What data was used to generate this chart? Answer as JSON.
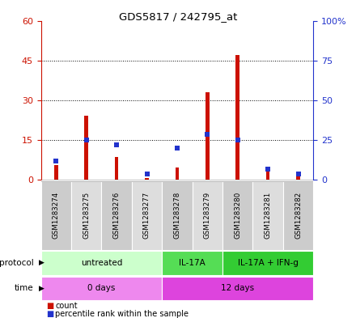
{
  "title": "GDS5817 / 242795_at",
  "samples": [
    "GSM1283274",
    "GSM1283275",
    "GSM1283276",
    "GSM1283277",
    "GSM1283278",
    "GSM1283279",
    "GSM1283280",
    "GSM1283281",
    "GSM1283282"
  ],
  "counts": [
    5.5,
    24,
    8.5,
    0.5,
    4.5,
    33,
    47,
    3,
    1.5
  ],
  "percentiles_left": [
    7,
    15,
    13,
    2,
    12,
    17,
    15,
    4,
    2
  ],
  "ylim_left": [
    0,
    60
  ],
  "ylim_right": [
    0,
    100
  ],
  "yticks_left": [
    0,
    15,
    30,
    45,
    60
  ],
  "ytick_labels_left": [
    "0",
    "15",
    "30",
    "45",
    "60"
  ],
  "yticks_right": [
    0,
    25,
    50,
    75,
    100
  ],
  "ytick_labels_right": [
    "0",
    "25",
    "50",
    "75",
    "100%"
  ],
  "bar_color": "#cc1100",
  "dot_color": "#2233cc",
  "bar_width": 0.12,
  "protocol_groups": [
    {
      "label": "untreated",
      "start": 0,
      "end": 4,
      "color": "#ccffcc"
    },
    {
      "label": "IL-17A",
      "start": 4,
      "end": 6,
      "color": "#55dd55"
    },
    {
      "label": "IL-17A + IFN-g",
      "start": 6,
      "end": 9,
      "color": "#33cc33"
    }
  ],
  "time_groups": [
    {
      "label": "0 days",
      "start": 0,
      "end": 4,
      "color": "#ee88ee"
    },
    {
      "label": "12 days",
      "start": 4,
      "end": 9,
      "color": "#dd44dd"
    }
  ],
  "protocol_label": "protocol",
  "time_label": "time",
  "grid_color": "#000000",
  "axis_color_left": "#cc1100",
  "axis_color_right": "#2233cc",
  "sample_box_colors": [
    "#cccccc",
    "#dddddd"
  ],
  "fig_width": 4.4,
  "fig_height": 3.93,
  "dpi": 100
}
